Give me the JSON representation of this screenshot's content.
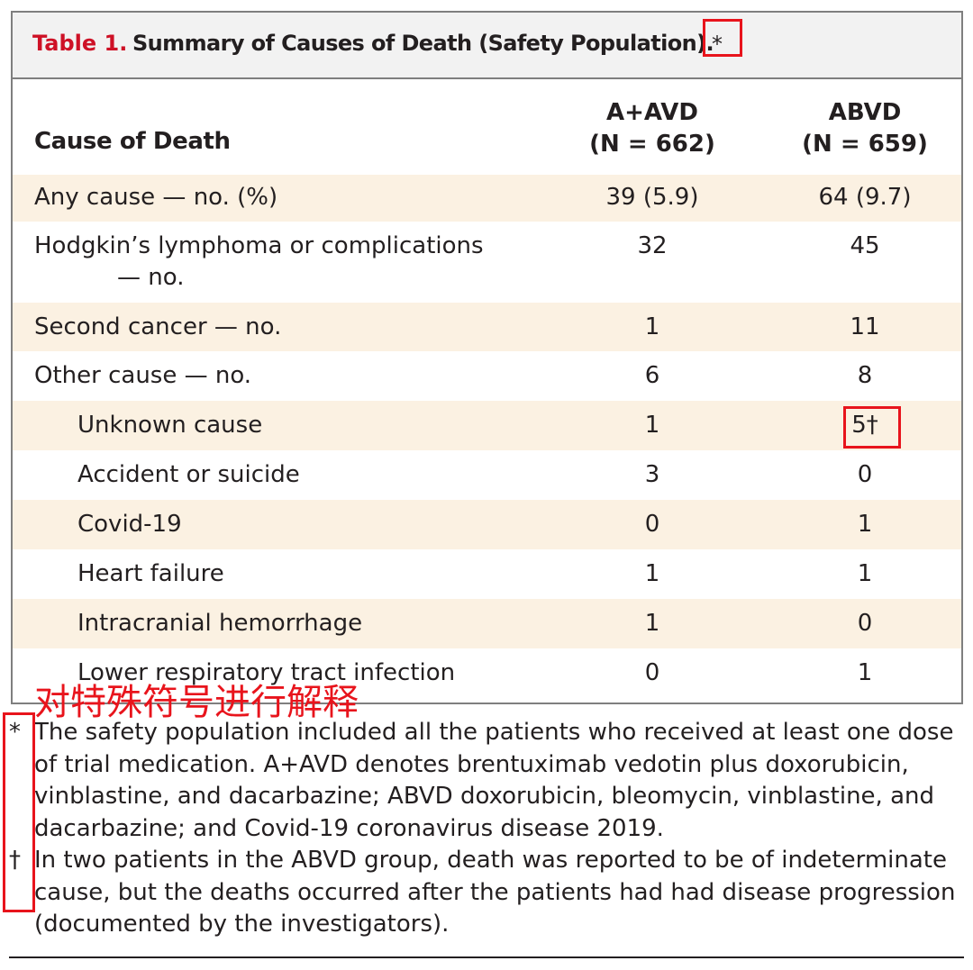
{
  "table": {
    "label": "Table 1.",
    "title": "Summary of Causes of Death (Safety Population).",
    "title_mark": "*",
    "columns": {
      "cause": "Cause of Death",
      "group_a_name": "A+AVD",
      "group_a_n": "(N = 662)",
      "group_b_name": "ABVD",
      "group_b_n": "(N = 659)"
    },
    "rows": [
      {
        "label": "Any cause — no. (%)",
        "a": "39 (5.9)",
        "b": "64 (9.7)"
      },
      {
        "label": "Hodgkin’s lymphoma or complications",
        "label_cont": "— no.",
        "a": "32",
        "b": "45"
      },
      {
        "label": "Second cancer — no.",
        "a": "1",
        "b": "11"
      },
      {
        "label": "Other cause — no.",
        "a": "6",
        "b": "8"
      },
      {
        "label": "Unknown cause",
        "a": "1",
        "b": "5†"
      },
      {
        "label": "Accident or suicide",
        "a": "3",
        "b": "0"
      },
      {
        "label": "Covid-19",
        "a": "0",
        "b": "1"
      },
      {
        "label": "Heart failure",
        "a": "1",
        "b": "1"
      },
      {
        "label": "Intracranial hemorrhage",
        "a": "1",
        "b": "0"
      },
      {
        "label": "Lower respiratory tract infection",
        "a": "0",
        "b": "1"
      }
    ]
  },
  "footnotes": [
    {
      "symbol": "*",
      "text": "The safety population included all the patients who received at least one dose of trial medication. A+AVD denotes brentuximab vedotin plus doxorubicin, vinblastine, and dacarbazine; ABVD doxorubicin, bleomycin, vinblastine, and dacarbazine; and Covid-19 coronavirus disease 2019."
    },
    {
      "symbol": "†",
      "text": "In two patients in the ABVD group, death was reported to be of indeterminate cause, but the deaths occurred after the patients had had disease progression (documented by the investigators)."
    }
  ],
  "annotation": {
    "text": "对特殊符号进行解释",
    "color": "#e8141c"
  },
  "colors": {
    "label_red": "#ce1126",
    "row_shade": "#fbf1e2",
    "title_bar": "#f2f2f2"
  }
}
